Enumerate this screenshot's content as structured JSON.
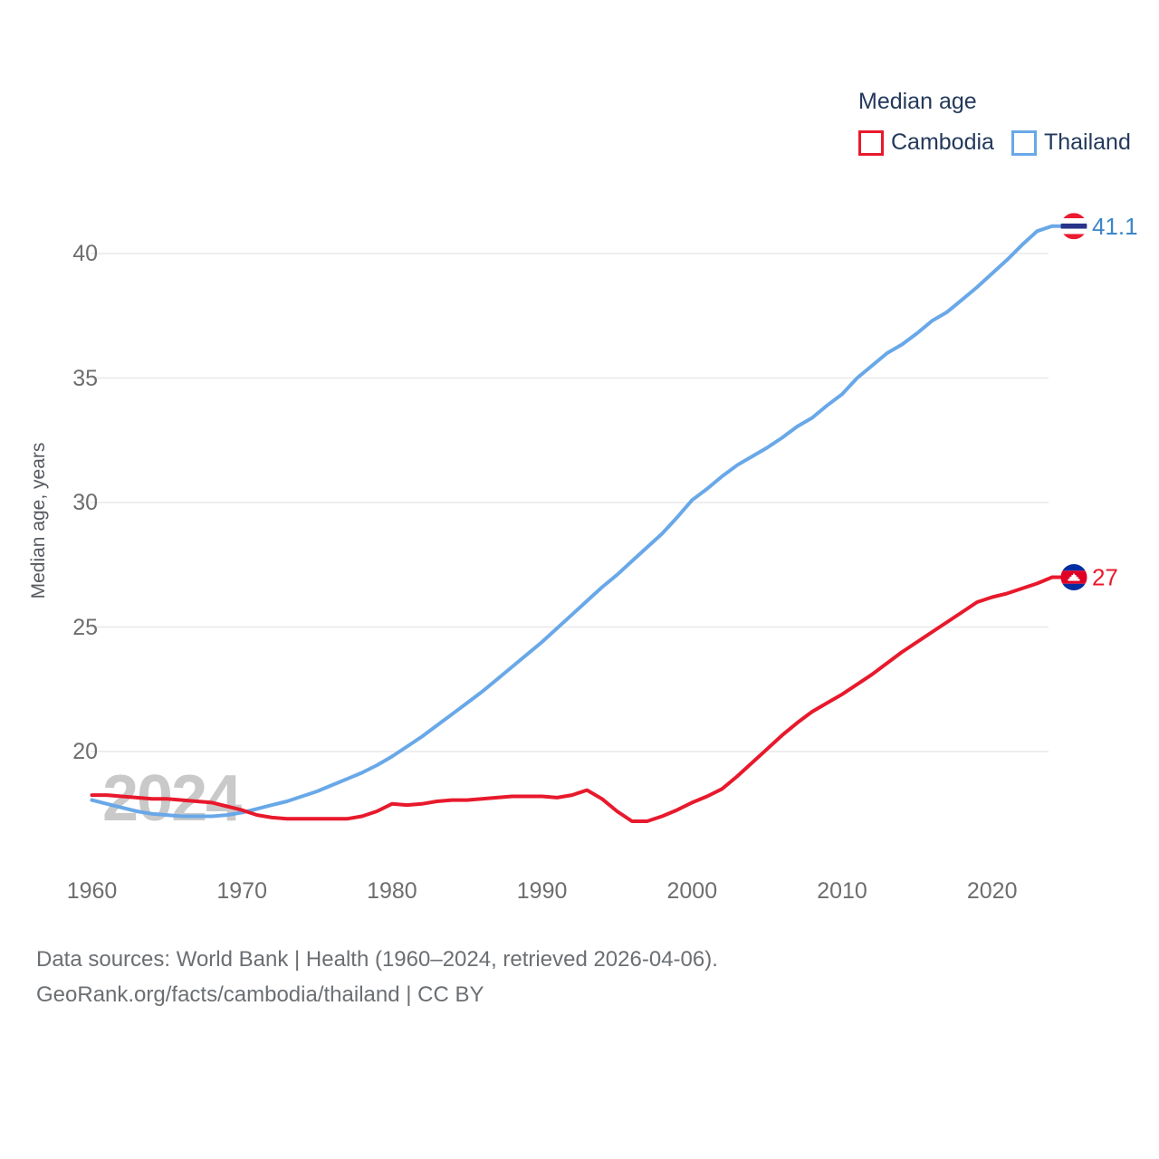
{
  "legend": {
    "title": "Median age",
    "items": [
      {
        "label": "Cambodia",
        "color": "#e8192c"
      },
      {
        "label": "Thailand",
        "color": "#69a8e8"
      }
    ]
  },
  "axes": {
    "y": {
      "title": "Median age, years",
      "ticks": [
        40,
        35,
        30,
        25,
        20
      ]
    },
    "x": {
      "ticks": [
        1960,
        1970,
        1980,
        1990,
        2000,
        2010,
        2020
      ]
    }
  },
  "watermark": "2024",
  "footer": {
    "line1": "Data sources: World Bank | Health (1960–2024, retrieved 2026-04-06).",
    "line2": "GeoRank.org/facts/cambodia/thailand | CC BY"
  },
  "chart_data": {
    "type": "line",
    "title": "Median age",
    "xlabel": "",
    "ylabel": "Median age, years",
    "xlim": [
      1960,
      2024
    ],
    "ylim": [
      16,
      42.5
    ],
    "grid": "horizontal",
    "legend_position": "top-right",
    "x": [
      1960,
      1961,
      1962,
      1963,
      1964,
      1965,
      1966,
      1967,
      1968,
      1969,
      1970,
      1971,
      1972,
      1973,
      1974,
      1975,
      1976,
      1977,
      1978,
      1979,
      1980,
      1981,
      1982,
      1983,
      1984,
      1985,
      1986,
      1987,
      1988,
      1989,
      1990,
      1991,
      1992,
      1993,
      1994,
      1995,
      1996,
      1997,
      1998,
      1999,
      2000,
      2001,
      2002,
      2003,
      2004,
      2005,
      2006,
      2007,
      2008,
      2009,
      2010,
      2011,
      2012,
      2013,
      2014,
      2015,
      2016,
      2017,
      2018,
      2019,
      2020,
      2021,
      2022,
      2023,
      2024
    ],
    "series": [
      {
        "name": "Cambodia",
        "color": "#e8192c",
        "flag": "cambodia",
        "end_label": "27",
        "end_label_color": "#e8192c",
        "values": [
          18.25,
          18.25,
          18.2,
          18.15,
          18.1,
          18.1,
          18.05,
          18.0,
          17.95,
          17.8,
          17.65,
          17.45,
          17.35,
          17.3,
          17.3,
          17.3,
          17.3,
          17.3,
          17.4,
          17.6,
          17.9,
          17.85,
          17.9,
          18.0,
          18.05,
          18.05,
          18.1,
          18.15,
          18.2,
          18.2,
          18.2,
          18.15,
          18.25,
          18.45,
          18.1,
          17.6,
          17.2,
          17.2,
          17.4,
          17.65,
          17.95,
          18.2,
          18.5,
          19.0,
          19.55,
          20.1,
          20.65,
          21.15,
          21.6,
          21.95,
          22.3,
          22.7,
          23.1,
          23.55,
          24.0,
          24.4,
          24.8,
          25.2,
          25.6,
          26.0,
          26.2,
          26.35,
          26.55,
          26.75,
          27.0
        ]
      },
      {
        "name": "Thailand",
        "color": "#69a8e8",
        "flag": "thailand",
        "end_label": "41.1",
        "end_label_color": "#3c86c9",
        "values": [
          18.05,
          17.9,
          17.75,
          17.6,
          17.5,
          17.45,
          17.4,
          17.4,
          17.4,
          17.45,
          17.55,
          17.7,
          17.85,
          18.0,
          18.2,
          18.4,
          18.65,
          18.9,
          19.15,
          19.45,
          19.8,
          20.2,
          20.6,
          21.05,
          21.5,
          21.95,
          22.4,
          22.9,
          23.4,
          23.9,
          24.4,
          24.95,
          25.5,
          26.05,
          26.6,
          27.1,
          27.65,
          28.2,
          28.75,
          29.4,
          30.1,
          30.55,
          31.05,
          31.5,
          31.85,
          32.2,
          32.6,
          33.05,
          33.4,
          33.9,
          34.35,
          35.0,
          35.5,
          36.0,
          36.35,
          36.8,
          37.3,
          37.65,
          38.15,
          38.65,
          39.2,
          39.75,
          40.35,
          40.9,
          41.1
        ]
      }
    ]
  }
}
